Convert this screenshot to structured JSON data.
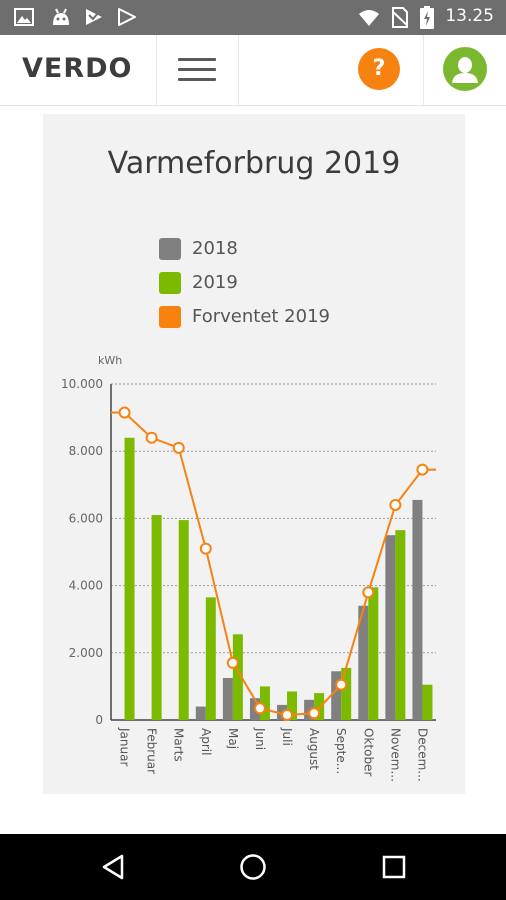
{
  "status_bar": {
    "time": "13.25",
    "icons": [
      "image-icon",
      "android-icon",
      "play-store-icon",
      "play-icon",
      "wifi-icon",
      "no-sim-icon",
      "battery-charging-icon"
    ]
  },
  "app_bar": {
    "logo": "VERDO",
    "help_label": "?",
    "icons": [
      "menu-icon",
      "help-icon",
      "user-icon"
    ]
  },
  "chart_data": {
    "type": "bar",
    "title": "Varmeforbrug 2019",
    "ylabel": "kWh",
    "ylim": [
      0,
      10000
    ],
    "yticks": [
      "0",
      "2.000",
      "4.000",
      "6.000",
      "8.000",
      "10.000"
    ],
    "grid": true,
    "legend_position": "top",
    "categories": [
      "Januar",
      "Februar",
      "Marts",
      "April",
      "Maj",
      "Juni",
      "Juli",
      "August",
      "Septe...",
      "Oktober",
      "Novem...",
      "Decem..."
    ],
    "series": [
      {
        "name": "2018",
        "type": "bar",
        "color": "#808080",
        "values": [
          0,
          0,
          0,
          400,
          1250,
          650,
          450,
          600,
          1450,
          3400,
          5500,
          6550
        ]
      },
      {
        "name": "2019",
        "type": "bar",
        "color": "#7cba00",
        "values": [
          8400,
          6100,
          5950,
          3650,
          2550,
          1000,
          850,
          800,
          1550,
          3950,
          5650,
          1050
        ]
      },
      {
        "name": "Forventet 2019",
        "type": "line",
        "color": "#f7820f",
        "values": [
          9150,
          8400,
          8100,
          5100,
          1700,
          350,
          150,
          200,
          1050,
          3800,
          6400,
          7450
        ]
      }
    ]
  },
  "nav_bar": {
    "icons": [
      "back-icon",
      "home-icon",
      "recents-icon"
    ]
  }
}
